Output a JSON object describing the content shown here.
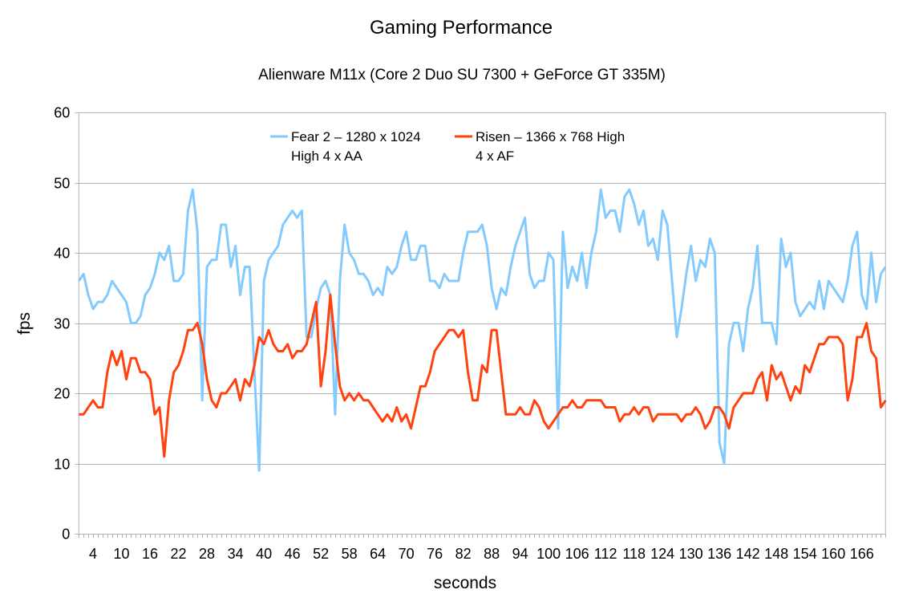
{
  "chart_data": {
    "type": "line",
    "title": "Gaming Performance",
    "subtitle": "Alienware M11x (Core 2 Duo SU 7300 + GeForce GT 335M)",
    "xlabel": "seconds",
    "ylabel": "fps",
    "ylim": [
      0,
      60
    ],
    "yticks": [
      0,
      10,
      20,
      30,
      40,
      50,
      60
    ],
    "x_tick_labels": [
      4,
      10,
      16,
      22,
      28,
      34,
      40,
      46,
      52,
      58,
      64,
      70,
      76,
      82,
      88,
      94,
      100,
      106,
      112,
      118,
      124,
      130,
      136,
      142,
      148,
      154,
      160,
      166
    ],
    "x_start": 1,
    "grid": "horizontal",
    "legend_position": "top-center",
    "series": [
      {
        "name": "Fear 2 – 1280 x 1024 High 4 x AA",
        "legend_lines": [
          "Fear 2 – 1280 x 1024",
          "High 4 x AA"
        ],
        "color": "#83caff",
        "values": [
          36,
          37,
          34,
          32,
          33,
          33,
          34,
          36,
          35,
          34,
          33,
          30,
          30,
          31,
          34,
          35,
          37,
          40,
          39,
          41,
          36,
          36,
          37,
          46,
          49,
          43,
          19,
          38,
          39,
          39,
          44,
          44,
          38,
          41,
          34,
          38,
          38,
          23,
          9,
          36,
          39,
          40,
          41,
          44,
          45,
          46,
          45,
          46,
          28,
          28,
          32,
          35,
          36,
          34,
          17,
          36,
          44,
          40,
          39,
          37,
          37,
          36,
          34,
          35,
          34,
          38,
          37,
          38,
          41,
          43,
          39,
          39,
          41,
          41,
          36,
          36,
          35,
          37,
          36,
          36,
          36,
          40,
          43,
          43,
          43,
          44,
          41,
          35,
          32,
          35,
          34,
          38,
          41,
          43,
          45,
          37,
          35,
          36,
          36,
          40,
          39,
          15,
          43,
          35,
          38,
          36,
          40,
          35,
          40,
          43,
          49,
          45,
          46,
          46,
          43,
          48,
          49,
          47,
          44,
          46,
          41,
          42,
          39,
          46,
          44,
          36,
          28,
          32,
          37,
          41,
          36,
          39,
          38,
          42,
          40,
          13,
          10,
          27,
          30,
          30,
          26,
          32,
          35,
          41,
          30,
          30,
          30,
          27,
          42,
          38,
          40,
          33,
          31,
          32,
          33,
          32,
          36,
          32,
          36,
          35,
          34,
          33,
          36,
          41,
          43,
          34,
          32,
          40,
          33,
          37,
          38
        ]
      },
      {
        "name": "Risen – 1366 x 768 High 4 x AF",
        "legend_lines": [
          "Risen – 1366 x 768 High",
          "4 x AF"
        ],
        "color": "#ff420e",
        "values": [
          17,
          17,
          18,
          19,
          18,
          18,
          23,
          26,
          24,
          26,
          22,
          25,
          25,
          23,
          23,
          22,
          17,
          18,
          11,
          19,
          23,
          24,
          26,
          29,
          29,
          30,
          27,
          22,
          19,
          18,
          20,
          20,
          21,
          22,
          19,
          22,
          21,
          24,
          28,
          27,
          29,
          27,
          26,
          26,
          27,
          25,
          26,
          26,
          27,
          30,
          33,
          21,
          26,
          34,
          27,
          21,
          19,
          20,
          19,
          20,
          19,
          19,
          18,
          17,
          16,
          17,
          16,
          18,
          16,
          17,
          15,
          18,
          21,
          21,
          23,
          26,
          27,
          28,
          29,
          29,
          28,
          29,
          23,
          19,
          19,
          24,
          23,
          29,
          29,
          23,
          17,
          17,
          17,
          18,
          17,
          17,
          19,
          18,
          16,
          15,
          16,
          17,
          18,
          18,
          19,
          18,
          18,
          19,
          19,
          19,
          19,
          18,
          18,
          18,
          16,
          17,
          17,
          18,
          17,
          18,
          18,
          16,
          17,
          17,
          17,
          17,
          17,
          16,
          17,
          17,
          18,
          17,
          15,
          16,
          18,
          18,
          17,
          15,
          18,
          19,
          20,
          20,
          20,
          22,
          23,
          19,
          24,
          22,
          23,
          21,
          19,
          21,
          20,
          24,
          23,
          25,
          27,
          27,
          28,
          28,
          28,
          27,
          19,
          22,
          28,
          28,
          30,
          26,
          25,
          18,
          19
        ]
      }
    ]
  },
  "colors": {
    "grid": "#b3b3b3",
    "axis": "#b3b3b3",
    "text": "#000000"
  }
}
